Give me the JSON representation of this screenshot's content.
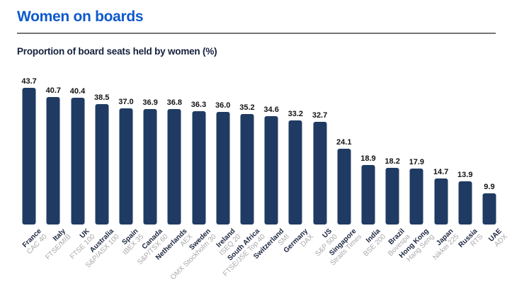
{
  "page": {
    "title": "Women on boards",
    "subtitle": "Proportion of board seats held by women (%)"
  },
  "colors": {
    "title_blue": "#0d59cc",
    "subtitle_navy": "#14203c",
    "bar_navy": "#1f3b63",
    "value_label": "#121212",
    "country_label": "#1b2540",
    "index_label": "#a9a9ad",
    "rule_gray": "#757575"
  },
  "chart_data": {
    "type": "bar",
    "title": "Women on boards",
    "subtitle": "Proportion of board seats held by women (%)",
    "ylabel": "Proportion of board seats held by women (%)",
    "xlabel": "",
    "ylim": [
      0,
      45
    ],
    "grid": false,
    "legend": "none",
    "value_labels_shown": true,
    "categories": [
      "France",
      "Italy",
      "UK",
      "Australia",
      "Spain",
      "Canada",
      "Netherlands",
      "Sweden",
      "Ireland",
      "South Africa",
      "Switzerland",
      "Germany",
      "US",
      "Singapore",
      "India",
      "Brazil",
      "Hong Kong",
      "Japan",
      "Russia",
      "UAE"
    ],
    "indices": [
      "CAC 40",
      "FTSE/MIB",
      "FTSE 100",
      "S&P/ASX 100",
      "IBEX 35",
      "S&P/TSX 60",
      "AEX",
      "OMX Stockholm 30",
      "ISEQ 20",
      "FTSE/JSE Top 40",
      "SMI",
      "DAX",
      "S&P 500",
      "Straits Times",
      "BSE 200",
      "Bovespa",
      "Hang Seng",
      "Nikkei 225",
      "RTS",
      "ADX"
    ],
    "values": [
      43.7,
      40.7,
      40.4,
      38.5,
      37.0,
      36.9,
      36.8,
      36.3,
      36.0,
      35.2,
      34.6,
      33.2,
      32.7,
      24.1,
      18.9,
      18.2,
      17.9,
      14.7,
      13.9,
      9.9
    ]
  }
}
